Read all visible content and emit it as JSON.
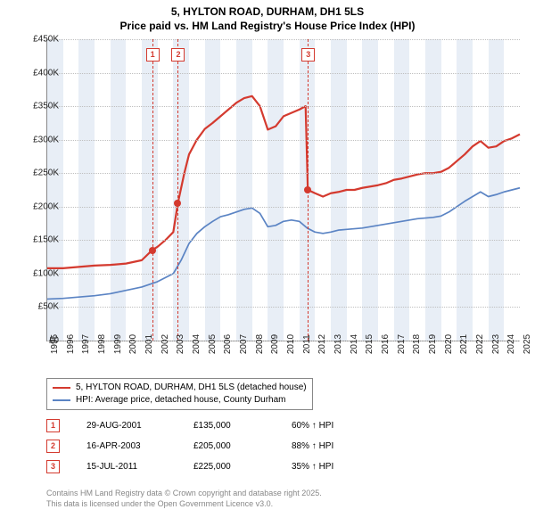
{
  "title": {
    "line1": "5, HYLTON ROAD, DURHAM, DH1 5LS",
    "line2": "Price paid vs. HM Land Registry's House Price Index (HPI)"
  },
  "chart": {
    "type": "line",
    "x_start": 1995,
    "x_end": 2025,
    "years": [
      1995,
      1996,
      1997,
      1998,
      1999,
      2000,
      2001,
      2002,
      2003,
      2004,
      2005,
      2006,
      2007,
      2008,
      2009,
      2010,
      2011,
      2012,
      2013,
      2014,
      2015,
      2016,
      2017,
      2018,
      2019,
      2020,
      2021,
      2022,
      2023,
      2024,
      2025
    ],
    "ylim": [
      0,
      450000
    ],
    "ytick_step": 50000,
    "ytick_labels": [
      "£0",
      "£50K",
      "£100K",
      "£150K",
      "£200K",
      "£250K",
      "£300K",
      "£350K",
      "£400K",
      "£450K"
    ],
    "background_color": "#ffffff",
    "band_color": "#e8eef6",
    "grid_color": "#bfbfbf",
    "axis_color": "#888888",
    "label_fontsize": 10,
    "title_fontsize": 12,
    "series": [
      {
        "name": "5, HYLTON ROAD, DURHAM, DH1 5LS (detached house)",
        "color": "#d43a2f",
        "width": 2.2,
        "points": [
          [
            1995,
            108000
          ],
          [
            1996,
            108000
          ],
          [
            1997,
            110000
          ],
          [
            1998,
            112000
          ],
          [
            1999,
            113000
          ],
          [
            2000,
            115000
          ],
          [
            2001,
            120000
          ],
          [
            2001.66,
            135000
          ],
          [
            2002,
            140000
          ],
          [
            2002.5,
            150000
          ],
          [
            2003,
            162000
          ],
          [
            2003.29,
            205000
          ],
          [
            2003.7,
            250000
          ],
          [
            2004,
            278000
          ],
          [
            2004.5,
            300000
          ],
          [
            2005,
            316000
          ],
          [
            2005.5,
            325000
          ],
          [
            2006,
            335000
          ],
          [
            2006.5,
            345000
          ],
          [
            2007,
            355000
          ],
          [
            2007.5,
            362000
          ],
          [
            2008,
            365000
          ],
          [
            2008.5,
            350000
          ],
          [
            2009,
            315000
          ],
          [
            2009.5,
            320000
          ],
          [
            2010,
            335000
          ],
          [
            2010.5,
            340000
          ],
          [
            2011,
            345000
          ],
          [
            2011.4,
            350000
          ],
          [
            2011.54,
            225000
          ],
          [
            2012,
            220000
          ],
          [
            2012.5,
            215000
          ],
          [
            2013,
            220000
          ],
          [
            2013.5,
            222000
          ],
          [
            2014,
            225000
          ],
          [
            2014.5,
            225000
          ],
          [
            2015,
            228000
          ],
          [
            2015.5,
            230000
          ],
          [
            2016,
            232000
          ],
          [
            2016.5,
            235000
          ],
          [
            2017,
            240000
          ],
          [
            2017.5,
            242000
          ],
          [
            2018,
            245000
          ],
          [
            2018.5,
            248000
          ],
          [
            2019,
            250000
          ],
          [
            2019.5,
            250000
          ],
          [
            2020,
            252000
          ],
          [
            2020.5,
            258000
          ],
          [
            2021,
            268000
          ],
          [
            2021.5,
            278000
          ],
          [
            2022,
            290000
          ],
          [
            2022.5,
            298000
          ],
          [
            2023,
            288000
          ],
          [
            2023.5,
            290000
          ],
          [
            2024,
            298000
          ],
          [
            2024.5,
            302000
          ],
          [
            2025,
            308000
          ]
        ]
      },
      {
        "name": "HPI: Average price, detached house, County Durham",
        "color": "#5b84c4",
        "width": 1.7,
        "points": [
          [
            1995,
            62000
          ],
          [
            1996,
            63000
          ],
          [
            1997,
            65000
          ],
          [
            1998,
            67000
          ],
          [
            1999,
            70000
          ],
          [
            2000,
            75000
          ],
          [
            2001,
            80000
          ],
          [
            2002,
            88000
          ],
          [
            2003,
            100000
          ],
          [
            2003.5,
            120000
          ],
          [
            2004,
            145000
          ],
          [
            2004.5,
            160000
          ],
          [
            2005,
            170000
          ],
          [
            2005.5,
            178000
          ],
          [
            2006,
            185000
          ],
          [
            2006.5,
            188000
          ],
          [
            2007,
            192000
          ],
          [
            2007.5,
            196000
          ],
          [
            2008,
            198000
          ],
          [
            2008.5,
            190000
          ],
          [
            2009,
            170000
          ],
          [
            2009.5,
            172000
          ],
          [
            2010,
            178000
          ],
          [
            2010.5,
            180000
          ],
          [
            2011,
            178000
          ],
          [
            2011.5,
            168000
          ],
          [
            2012,
            162000
          ],
          [
            2012.5,
            160000
          ],
          [
            2013,
            162000
          ],
          [
            2013.5,
            165000
          ],
          [
            2014,
            166000
          ],
          [
            2014.5,
            167000
          ],
          [
            2015,
            168000
          ],
          [
            2015.5,
            170000
          ],
          [
            2016,
            172000
          ],
          [
            2016.5,
            174000
          ],
          [
            2017,
            176000
          ],
          [
            2017.5,
            178000
          ],
          [
            2018,
            180000
          ],
          [
            2018.5,
            182000
          ],
          [
            2019,
            183000
          ],
          [
            2019.5,
            184000
          ],
          [
            2020,
            186000
          ],
          [
            2020.5,
            192000
          ],
          [
            2021,
            200000
          ],
          [
            2021.5,
            208000
          ],
          [
            2022,
            215000
          ],
          [
            2022.5,
            222000
          ],
          [
            2023,
            215000
          ],
          [
            2023.5,
            218000
          ],
          [
            2024,
            222000
          ],
          [
            2024.5,
            225000
          ],
          [
            2025,
            228000
          ]
        ]
      }
    ]
  },
  "events": [
    {
      "n": "1",
      "year": 2001.66,
      "value": 135000,
      "date": "29-AUG-2001",
      "price": "£135,000",
      "hpi": "60% ↑ HPI"
    },
    {
      "n": "2",
      "year": 2003.29,
      "value": 205000,
      "date": "16-APR-2003",
      "price": "£205,000",
      "hpi": "88% ↑ HPI"
    },
    {
      "n": "3",
      "year": 2011.54,
      "value": 225000,
      "date": "15-JUL-2011",
      "price": "£225,000",
      "hpi": "35% ↑ HPI"
    }
  ],
  "legend": {
    "label0": "5, HYLTON ROAD, DURHAM, DH1 5LS (detached house)",
    "label1": "HPI: Average price, detached house, County Durham"
  },
  "footer": {
    "line1": "Contains HM Land Registry data © Crown copyright and database right 2025.",
    "line2": "This data is licensed under the Open Government Licence v3.0."
  }
}
